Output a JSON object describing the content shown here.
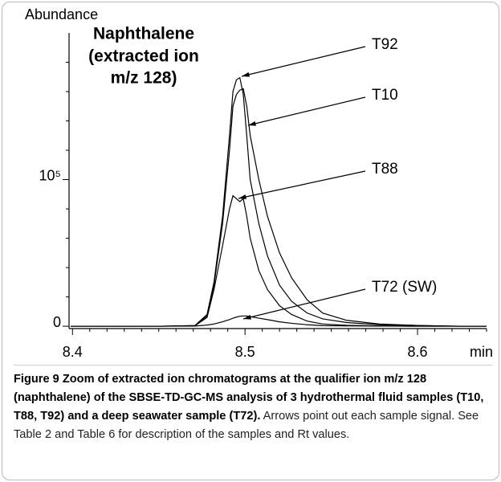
{
  "chart_data": {
    "type": "line",
    "y_label": "Abundance",
    "x_label": "min",
    "annotation_lines": [
      "Naphthalene",
      "(extracted ion",
      "m/z 128)"
    ],
    "x": [
      8.399,
      8.429,
      8.452,
      8.471,
      8.478,
      8.482,
      8.487,
      8.491,
      8.493,
      8.495,
      8.497,
      8.499,
      8.501,
      8.503,
      8.508,
      8.513,
      8.52,
      8.527,
      8.536,
      8.545,
      8.559,
      8.578,
      8.601,
      8.624,
      8.64
    ],
    "series": [
      {
        "name": "T92",
        "color": "#000000",
        "values": [
          0,
          0,
          0,
          500,
          8000,
          30000,
          75000,
          130000,
          160000,
          168000,
          169500,
          158000,
          130000,
          100000,
          70000,
          48000,
          28000,
          17000,
          9000,
          5000,
          2500,
          1000,
          500,
          0,
          0
        ]
      },
      {
        "name": "T10",
        "color": "#000000",
        "values": [
          0,
          0,
          0,
          400,
          7000,
          28000,
          70000,
          120000,
          150000,
          158000,
          161000,
          162000,
          150000,
          130000,
          100000,
          75000,
          50000,
          33000,
          18000,
          9000,
          4000,
          1500,
          500,
          0,
          0
        ]
      },
      {
        "name": "T88",
        "color": "#000000",
        "values": [
          0,
          0,
          0,
          300,
          6000,
          25000,
          55000,
          80000,
          89000,
          87000,
          85000,
          87000,
          75000,
          60000,
          38000,
          25000,
          14000,
          8000,
          3500,
          1500,
          600,
          200,
          0,
          0,
          0
        ]
      },
      {
        "name": "T72 (SW)",
        "color": "#000000",
        "values": [
          0,
          0,
          0,
          100,
          800,
          1500,
          3000,
          4500,
          5500,
          6200,
          6800,
          7000,
          7000,
          6500,
          5500,
          4500,
          3000,
          2000,
          1000,
          400,
          200,
          100,
          0,
          0,
          0
        ]
      }
    ],
    "xlim": [
      8.398,
      8.64
    ],
    "ylim": [
      -1600,
      200000
    ],
    "xticks": [
      8.4,
      8.5,
      8.6
    ],
    "xminorticks": [
      8.41,
      8.42,
      8.43,
      8.44,
      8.45,
      8.46,
      8.47,
      8.48,
      8.49,
      8.51,
      8.52,
      8.53,
      8.54,
      8.55,
      8.56,
      8.57,
      8.58,
      8.59,
      8.61,
      8.62,
      8.63,
      8.64
    ],
    "yticks": [
      0,
      {
        "value": 100000,
        "label": "10⁵"
      }
    ],
    "yminorticks": [
      20000,
      40000,
      60000,
      80000,
      120000,
      140000,
      160000,
      180000
    ],
    "grid": false
  },
  "caption": {
    "bold": "Figure 9 Zoom of extracted ion chromatograms at the qualifier ion m/z 128 (naphthalene) of the SBSE-TD-GC-MS analysis of 3 hydrothermal fluid samples (T10, T88, T92) and a deep seawater sample (T72).",
    "text": "Arrows point out each sample signal. See Table 2 and Table 6 for description of the samples and Rt values."
  }
}
